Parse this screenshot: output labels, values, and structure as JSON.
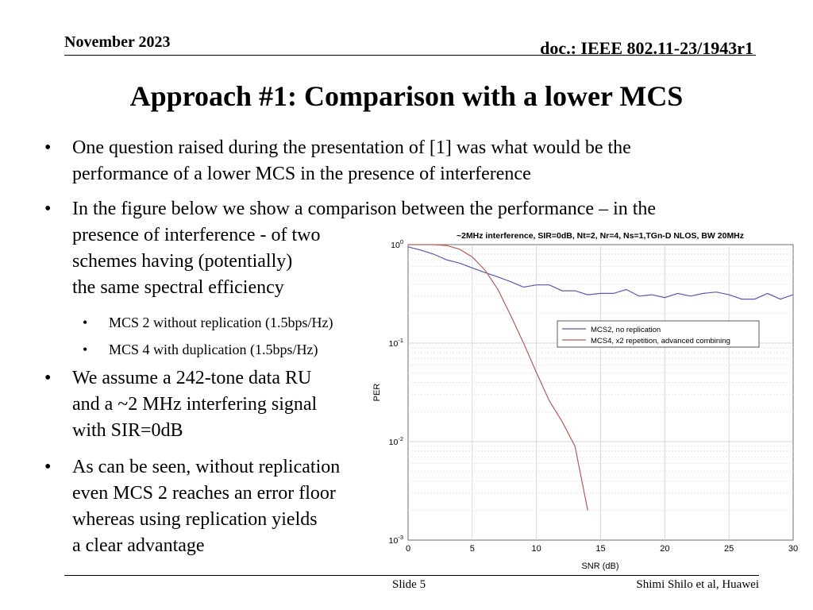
{
  "header": {
    "date": "November 2023",
    "doc_id": "doc.: IEEE 802.11-23/1943r1"
  },
  "title": "Approach #1: Comparison with a lower MCS",
  "bullets": [
    {
      "level": 1,
      "lines": [
        "One question raised during the presentation of [1] was what would be the",
        "performance of a lower MCS in the presence of interference"
      ]
    },
    {
      "level": 1,
      "lines": [
        "In the figure below we show a comparison between the performance – in the",
        "presence of interference - of two",
        "schemes having (potentially)",
        "the same spectral efficiency"
      ]
    },
    {
      "level": 2,
      "lines": [
        "MCS 2 without replication (1.5bps/Hz)"
      ]
    },
    {
      "level": 2,
      "lines": [
        "MCS 4 with duplication (1.5bps/Hz)"
      ]
    },
    {
      "level": 1,
      "lines": [
        "We assume a 242-tone data RU",
        "and a ~2 MHz interfering signal",
        "with SIR=0dB"
      ]
    },
    {
      "level": 1,
      "lines": [
        "As can be seen, without replication",
        "even MCS 2 reaches an error floor",
        "whereas using replication yields",
        "a clear advantage"
      ]
    }
  ],
  "footer": {
    "slide": "Slide 5",
    "author": "Shimi Shilo et al, Huawei"
  },
  "chart_data": {
    "type": "line",
    "title": "~2MHz interference, SIR=0dB, Nt=2, Nr=4, Ns=1,TGn-D NLOS, BW 20MHz",
    "xlabel": "SNR (dB)",
    "ylabel": "PER",
    "xlim": [
      0,
      30
    ],
    "ylim": [
      0.001,
      1
    ],
    "yscale": "log",
    "grid": true,
    "legend": "upper-right",
    "x_ticks": [
      0,
      5,
      10,
      15,
      20,
      25,
      30
    ],
    "y_ticks": [
      {
        "base": "10",
        "exp": "0"
      },
      {
        "base": "10",
        "exp": "-1"
      },
      {
        "base": "10",
        "exp": "-2"
      },
      {
        "base": "10",
        "exp": "-3"
      }
    ],
    "series": [
      {
        "name": "MCS2, no replication",
        "color": "#5a5aa8",
        "x": [
          0,
          1,
          2,
          3,
          4,
          5,
          6,
          7,
          8,
          9,
          10,
          11,
          12,
          13,
          14,
          15,
          16,
          17,
          18,
          19,
          20,
          21,
          22,
          23,
          24,
          25,
          26,
          27,
          28,
          29,
          30
        ],
        "y": [
          0.95,
          0.88,
          0.8,
          0.7,
          0.65,
          0.58,
          0.52,
          0.47,
          0.42,
          0.37,
          0.39,
          0.39,
          0.34,
          0.34,
          0.31,
          0.32,
          0.32,
          0.35,
          0.3,
          0.31,
          0.29,
          0.32,
          0.3,
          0.32,
          0.33,
          0.31,
          0.28,
          0.28,
          0.32,
          0.28,
          0.31
        ]
      },
      {
        "name": "MCS4, x2 repetition, advanced combining",
        "color": "#b85a5a",
        "x": [
          0,
          1,
          2,
          3,
          4,
          5,
          6,
          7,
          8,
          9,
          10,
          11,
          12,
          13,
          14
        ],
        "y": [
          1.0,
          1.0,
          1.0,
          0.98,
          0.9,
          0.75,
          0.55,
          0.35,
          0.19,
          0.1,
          0.05,
          0.026,
          0.016,
          0.009,
          0.002
        ]
      }
    ]
  }
}
